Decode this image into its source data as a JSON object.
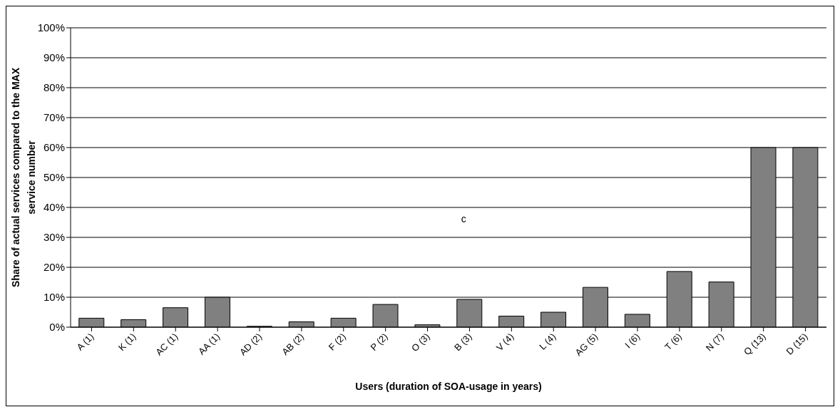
{
  "chart_data": {
    "type": "bar",
    "xlabel": "Users (duration of SOA-usage in years)",
    "ylabel": "Share of actual services compared to the MAX service number",
    "categories": [
      "A (1)",
      "K (1)",
      "AC (1)",
      "AA (1)",
      "AD (2)",
      "AB (2)",
      "F (2)",
      "P (2)",
      "O (3)",
      "B (3)",
      "V (4)",
      "L (4)",
      "AG (5)",
      "I (6)",
      "T (6)",
      "N (7)",
      "Q (13)",
      "D (15)"
    ],
    "values": [
      3.0,
      2.5,
      6.5,
      10,
      0.3,
      1.8,
      3.0,
      7.6,
      0.8,
      9.3,
      3.7,
      5.0,
      13.3,
      4.3,
      18.6,
      15.1,
      60,
      60
    ],
    "color": "#808080",
    "ylim": [
      0,
      100
    ],
    "yticks": [
      {
        "value": 0,
        "label": "0%"
      },
      {
        "value": 10,
        "label": "10%"
      },
      {
        "value": 20,
        "label": "20%"
      },
      {
        "value": 30,
        "label": "30%"
      },
      {
        "value": 40,
        "label": "40%"
      },
      {
        "value": 50,
        "label": "50%"
      },
      {
        "value": 60,
        "label": "60%"
      },
      {
        "value": 70,
        "label": "70%"
      },
      {
        "value": 80,
        "label": "80%"
      },
      {
        "value": 90,
        "label": "90%"
      },
      {
        "value": 100,
        "label": "100%"
      }
    ],
    "grid": "y",
    "annotations": [
      "c"
    ]
  }
}
